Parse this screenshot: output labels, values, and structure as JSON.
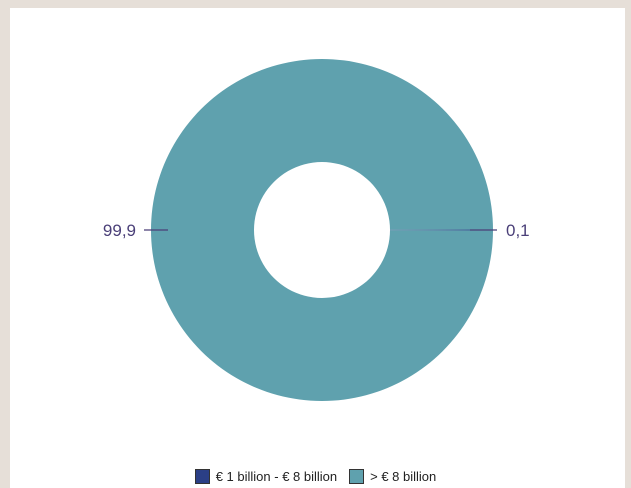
{
  "chart_data": {
    "type": "pie",
    "style": "donut",
    "title": "",
    "legend_position": "bottom",
    "series": [
      {
        "name": "€ 1 billion - € 8 billion",
        "value": 0.1,
        "label": "0,1",
        "color": "#2b3f86"
      },
      {
        "name": "> € 8 billion",
        "value": 99.9,
        "label": "99,9",
        "color": "#5fa1ae"
      }
    ],
    "label_color": "#4a3f78"
  }
}
